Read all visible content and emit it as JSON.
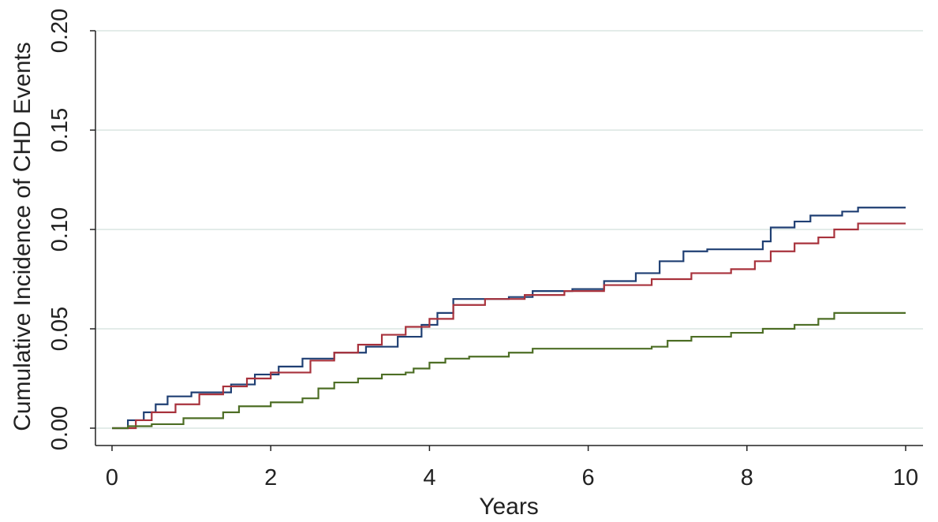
{
  "chart_data": {
    "type": "line",
    "title": "",
    "xlabel": "Years",
    "ylabel": "Cumulative Incidence of CHD Events",
    "xlim": [
      0,
      10
    ],
    "ylim": [
      0,
      0.2
    ],
    "x_ticks": [
      "0",
      "2",
      "4",
      "6",
      "8",
      "10"
    ],
    "y_ticks": [
      "0.00",
      "0.05",
      "0.10",
      "0.15",
      "0.20"
    ],
    "grid": true,
    "legend": "none",
    "step": true,
    "series": [
      {
        "color": "#1f3f73",
        "points": [
          [
            0,
            0
          ],
          [
            0.2,
            0.004
          ],
          [
            0.4,
            0.008
          ],
          [
            0.55,
            0.012
          ],
          [
            0.7,
            0.016
          ],
          [
            1.0,
            0.018
          ],
          [
            1.5,
            0.022
          ],
          [
            1.8,
            0.027
          ],
          [
            2.1,
            0.031
          ],
          [
            2.4,
            0.035
          ],
          [
            2.8,
            0.038
          ],
          [
            3.2,
            0.041
          ],
          [
            3.6,
            0.046
          ],
          [
            3.9,
            0.052
          ],
          [
            4.1,
            0.058
          ],
          [
            4.3,
            0.065
          ],
          [
            5.0,
            0.066
          ],
          [
            5.3,
            0.069
          ],
          [
            5.8,
            0.07
          ],
          [
            6.2,
            0.074
          ],
          [
            6.6,
            0.078
          ],
          [
            6.9,
            0.084
          ],
          [
            7.2,
            0.089
          ],
          [
            7.5,
            0.09
          ],
          [
            7.9,
            0.09
          ],
          [
            8.2,
            0.094
          ],
          [
            8.3,
            0.101
          ],
          [
            8.6,
            0.104
          ],
          [
            8.8,
            0.107
          ],
          [
            9.2,
            0.109
          ],
          [
            9.4,
            0.111
          ],
          [
            10.0,
            0.111
          ]
        ]
      },
      {
        "color": "#a8323c",
        "points": [
          [
            0,
            0
          ],
          [
            0.3,
            0.004
          ],
          [
            0.5,
            0.008
          ],
          [
            0.8,
            0.012
          ],
          [
            1.1,
            0.017
          ],
          [
            1.4,
            0.021
          ],
          [
            1.7,
            0.025
          ],
          [
            2.0,
            0.028
          ],
          [
            2.5,
            0.034
          ],
          [
            2.8,
            0.038
          ],
          [
            3.1,
            0.042
          ],
          [
            3.4,
            0.047
          ],
          [
            3.7,
            0.051
          ],
          [
            4.0,
            0.055
          ],
          [
            4.3,
            0.062
          ],
          [
            4.7,
            0.065
          ],
          [
            5.2,
            0.067
          ],
          [
            5.7,
            0.069
          ],
          [
            6.2,
            0.072
          ],
          [
            6.8,
            0.075
          ],
          [
            7.3,
            0.078
          ],
          [
            7.8,
            0.08
          ],
          [
            8.1,
            0.084
          ],
          [
            8.3,
            0.089
          ],
          [
            8.6,
            0.093
          ],
          [
            8.9,
            0.096
          ],
          [
            9.1,
            0.1
          ],
          [
            9.4,
            0.103
          ],
          [
            10.0,
            0.103
          ]
        ]
      },
      {
        "color": "#4d6e25",
        "points": [
          [
            0,
            0
          ],
          [
            0.2,
            0.001
          ],
          [
            0.5,
            0.002
          ],
          [
            0.9,
            0.005
          ],
          [
            1.4,
            0.008
          ],
          [
            1.6,
            0.011
          ],
          [
            2.0,
            0.013
          ],
          [
            2.4,
            0.015
          ],
          [
            2.6,
            0.02
          ],
          [
            2.8,
            0.023
          ],
          [
            3.1,
            0.025
          ],
          [
            3.4,
            0.027
          ],
          [
            3.7,
            0.028
          ],
          [
            3.8,
            0.03
          ],
          [
            4.0,
            0.033
          ],
          [
            4.2,
            0.035
          ],
          [
            4.5,
            0.036
          ],
          [
            5.0,
            0.038
          ],
          [
            5.3,
            0.04
          ],
          [
            6.0,
            0.04
          ],
          [
            6.8,
            0.041
          ],
          [
            7.0,
            0.044
          ],
          [
            7.3,
            0.046
          ],
          [
            7.8,
            0.048
          ],
          [
            8.2,
            0.05
          ],
          [
            8.6,
            0.052
          ],
          [
            8.9,
            0.055
          ],
          [
            9.1,
            0.058
          ],
          [
            10.0,
            0.058
          ]
        ]
      }
    ]
  }
}
